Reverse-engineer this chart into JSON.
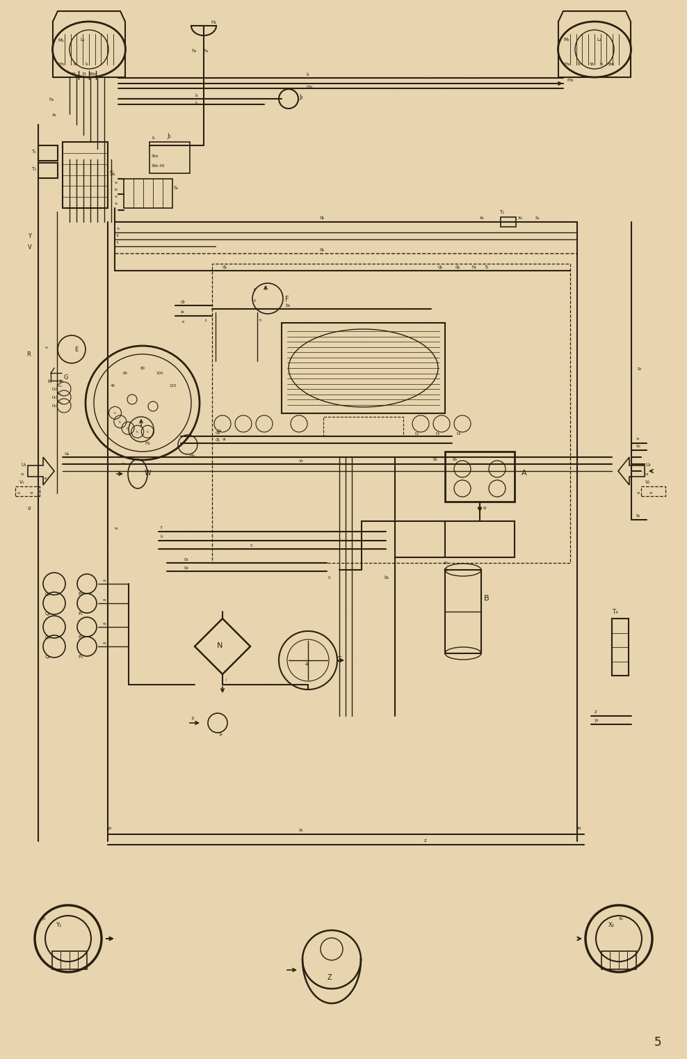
{
  "bg_color": "#e8d5b0",
  "line_color": "#2a2010",
  "fig_width": 9.69,
  "fig_height": 15.03,
  "page_number": "5"
}
